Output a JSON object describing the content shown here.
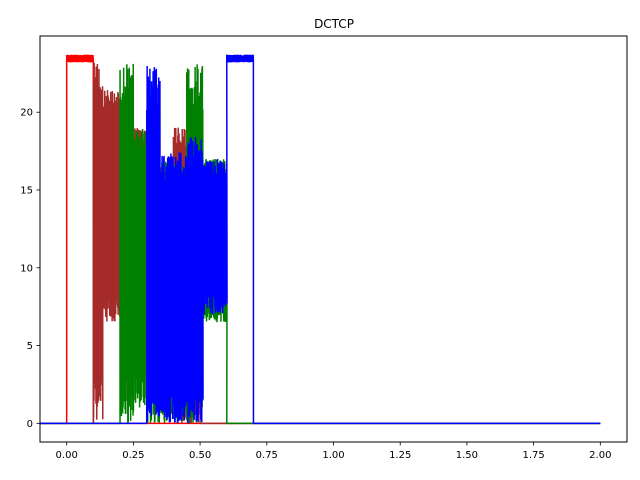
{
  "chart_data": {
    "type": "line",
    "title": "DCTCP",
    "xlabel": "",
    "ylabel": "",
    "xlim": [
      -0.1,
      2.1
    ],
    "ylim": [
      -1.2,
      24.9
    ],
    "xticks": [
      0.0,
      0.25,
      0.5,
      0.75,
      1.0,
      1.25,
      1.5,
      1.75,
      2.0
    ],
    "xtick_labels": [
      "0.00",
      "0.25",
      "0.50",
      "0.75",
      "1.00",
      "1.25",
      "1.50",
      "1.75",
      "2.00"
    ],
    "yticks": [
      0,
      5,
      10,
      15,
      20
    ],
    "ytick_labels": [
      "0",
      "5",
      "10",
      "15",
      "20"
    ],
    "grid": false,
    "legend": "none",
    "series": [
      {
        "color": "#ff0000",
        "start": 0.0,
        "end": 0.1,
        "segments": [
          {
            "x0": 0.0,
            "x1": 0.1,
            "lo": 23.2,
            "hi": 23.7
          }
        ]
      },
      {
        "color": "#a52a2a",
        "start": 0.1,
        "end": 0.5,
        "segments": [
          {
            "x0": 0.1,
            "x1": 0.135,
            "lo": 0.0,
            "hi": 23.2
          },
          {
            "x0": 0.135,
            "x1": 0.2,
            "lo": 6.5,
            "hi": 21.5
          },
          {
            "x0": 0.2,
            "x1": 0.3,
            "lo": 7.0,
            "hi": 19.0
          },
          {
            "x0": 0.3,
            "x1": 0.4,
            "lo": 5.5,
            "hi": 16.5
          },
          {
            "x0": 0.4,
            "x1": 0.5,
            "lo": 0.0,
            "hi": 19.2
          }
        ]
      },
      {
        "color": "#008000",
        "start": 0.2,
        "end": 0.6,
        "segments": [
          {
            "x0": 0.2,
            "x1": 0.25,
            "lo": 0.0,
            "hi": 23.2
          },
          {
            "x0": 0.25,
            "x1": 0.3,
            "lo": 1.0,
            "hi": 19.0
          },
          {
            "x0": 0.3,
            "x1": 0.45,
            "lo": 0.0,
            "hi": 17.0
          },
          {
            "x0": 0.45,
            "x1": 0.51,
            "lo": 0.0,
            "hi": 23.2
          },
          {
            "x0": 0.51,
            "x1": 0.6,
            "lo": 6.5,
            "hi": 17.0
          }
        ]
      },
      {
        "color": "#0000ff",
        "start": 0.3,
        "end": 0.7,
        "segments": [
          {
            "x0": 0.3,
            "x1": 0.35,
            "lo": 0.0,
            "hi": 23.2
          },
          {
            "x0": 0.35,
            "x1": 0.45,
            "lo": 0.0,
            "hi": 17.5
          },
          {
            "x0": 0.45,
            "x1": 0.51,
            "lo": 0.0,
            "hi": 18.5
          },
          {
            "x0": 0.51,
            "x1": 0.6,
            "lo": 7.0,
            "hi": 17.0
          },
          {
            "x0": 0.6,
            "x1": 0.7,
            "lo": 23.2,
            "hi": 23.7
          }
        ]
      }
    ]
  }
}
